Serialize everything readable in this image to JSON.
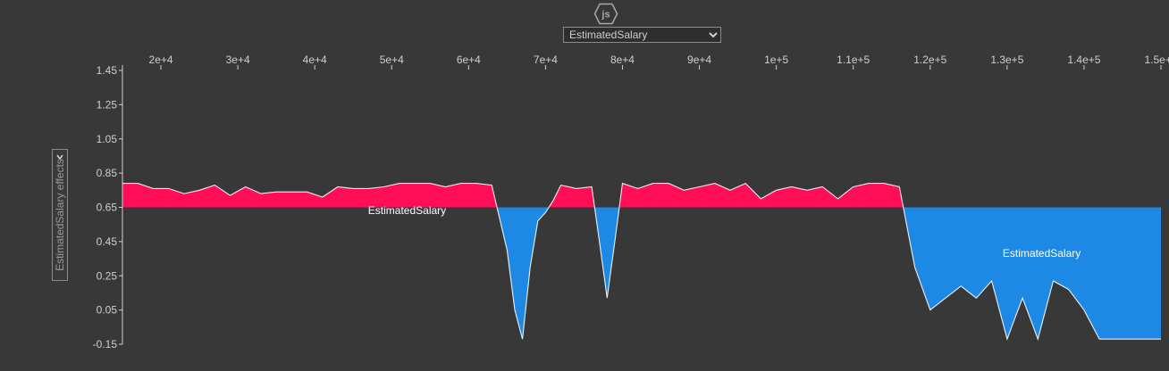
{
  "colors": {
    "positive": "#ff0d57",
    "negative": "#1e88e5",
    "background": "#383838",
    "axis": "#cfcfcf"
  },
  "header": {
    "logo_icon": "js-hexagon-icon",
    "logo_text": "js"
  },
  "feature_select": {
    "selected": "EstimatedSalary"
  },
  "y_axis": {
    "label": "EstimatedSalary effects"
  },
  "chart_data": {
    "type": "area",
    "title": "",
    "xlabel": "",
    "ylabel": "EstimatedSalary effects",
    "base_value": 0.65,
    "xlim": [
      15000,
      150000
    ],
    "ylim": [
      -0.15,
      1.45
    ],
    "x_tick_labels": [
      "2e+4",
      "3e+4",
      "4e+4",
      "5e+4",
      "6e+4",
      "7e+4",
      "8e+4",
      "9e+4",
      "1e+5",
      "1.1e+5",
      "1.2e+5",
      "1.3e+5",
      "1.4e+5",
      "1.5e+5"
    ],
    "x_ticks": [
      20000,
      30000,
      40000,
      50000,
      60000,
      70000,
      80000,
      90000,
      100000,
      110000,
      120000,
      130000,
      140000,
      150000
    ],
    "y_ticks": [
      -0.15,
      0.05,
      0.25,
      0.45,
      0.65,
      0.85,
      1.05,
      1.25,
      1.45
    ],
    "y_tick_labels": [
      "-0.15",
      "0.05",
      "0.25",
      "0.45",
      "0.65",
      "0.85",
      "1.05",
      "1.25",
      "1.45"
    ],
    "area_labels": [
      {
        "text": "EstimatedSalary",
        "x": 52000,
        "y": 0.61,
        "series": "positive"
      },
      {
        "text": "EstimatedSalary",
        "x": 134500,
        "y": 0.36,
        "series": "negative"
      }
    ],
    "x": [
      15000,
      17000,
      19000,
      21000,
      23000,
      25000,
      27000,
      29000,
      31000,
      33000,
      35000,
      37000,
      39000,
      41000,
      43000,
      45000,
      47000,
      49000,
      51000,
      53000,
      55000,
      57000,
      59000,
      61000,
      63000,
      65000,
      66000,
      67000,
      68000,
      69000,
      70000,
      71000,
      72000,
      74000,
      76000,
      77000,
      78000,
      79000,
      80000,
      82000,
      84000,
      86000,
      88000,
      90000,
      92000,
      94000,
      96000,
      98000,
      100000,
      102000,
      104000,
      106000,
      108000,
      110000,
      112000,
      114000,
      116000,
      118000,
      120000,
      122000,
      124000,
      126000,
      128000,
      130000,
      132000,
      134000,
      136000,
      138000,
      140000,
      142000,
      144000,
      146000,
      148000,
      150000
    ],
    "values": [
      0.79,
      0.79,
      0.76,
      0.76,
      0.73,
      0.75,
      0.78,
      0.72,
      0.77,
      0.73,
      0.74,
      0.74,
      0.74,
      0.71,
      0.77,
      0.76,
      0.76,
      0.77,
      0.79,
      0.79,
      0.79,
      0.77,
      0.79,
      0.79,
      0.78,
      0.4,
      0.05,
      -0.12,
      0.3,
      0.57,
      0.62,
      0.69,
      0.78,
      0.76,
      0.77,
      0.45,
      0.12,
      0.45,
      0.79,
      0.76,
      0.79,
      0.79,
      0.75,
      0.77,
      0.79,
      0.75,
      0.79,
      0.7,
      0.75,
      0.77,
      0.75,
      0.77,
      0.7,
      0.77,
      0.79,
      0.79,
      0.77,
      0.3,
      0.05,
      0.12,
      0.19,
      0.12,
      0.22,
      -0.12,
      0.12,
      -0.12,
      0.22,
      0.17,
      0.05,
      -0.12,
      -0.12,
      -0.12,
      -0.12,
      -0.12
    ]
  }
}
